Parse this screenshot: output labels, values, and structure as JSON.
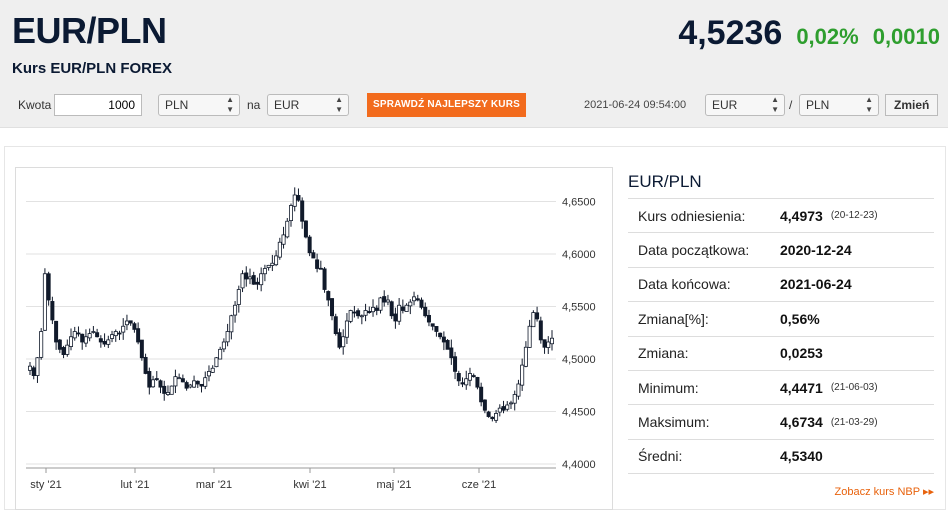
{
  "header": {
    "title": "EUR/PLN",
    "subtitle": "Kurs EUR/PLN FOREX",
    "rate": "4,5236",
    "change_pct": "0,02%",
    "change_abs": "0,0010"
  },
  "toolbar": {
    "amount_label": "Kwota",
    "amount_value": "1000",
    "from_currency": "PLN",
    "to_label": "na",
    "to_currency": "EUR",
    "cta_label": "SPRAWDŹ NAJLEPSZY KURS",
    "timestamp": "2021-06-24 09:54:00",
    "pair_base": "EUR",
    "pair_sep": "/",
    "pair_quote": "PLN",
    "change_button": "Zmień"
  },
  "panel": {
    "title": "EUR/PLN",
    "rows": [
      {
        "label": "Kurs odniesienia:",
        "value": "4,4973",
        "date": "(20-12-23)"
      },
      {
        "label": "Data początkowa:",
        "value": "2020-12-24",
        "date": ""
      },
      {
        "label": "Data końcowa:",
        "value": "2021-06-24",
        "date": ""
      },
      {
        "label": "Zmiana[%]:",
        "value": "0,56%",
        "date": ""
      },
      {
        "label": "Zmiana:",
        "value": "0,0253",
        "date": ""
      },
      {
        "label": "Minimum:",
        "value": "4,4471",
        "date": "(21-06-03)"
      },
      {
        "label": "Maksimum:",
        "value": "4,6734",
        "date": "(21-03-29)"
      },
      {
        "label": "Średni:",
        "value": "4,5340",
        "date": ""
      }
    ],
    "nbp_link": "Zobacz kurs NBP ▸▸"
  },
  "colors": {
    "title": "#0b1a33",
    "positive": "#2e9e2e",
    "cta": "#f26b1d",
    "link": "#e8620c",
    "candle_down": "#111a2b",
    "candle_up": "#ffffff"
  },
  "chart_data": {
    "type": "candlestick",
    "ylim": [
      4.4,
      4.68
    ],
    "yticks": [
      "4,4000",
      "4,4500",
      "4,5000",
      "4,5500",
      "4,6000",
      "4,6500"
    ],
    "xticks": [
      "sty '21",
      "lut '21",
      "mar '21",
      "kwi '21",
      "maj '21",
      "cze '21"
    ],
    "close": [
      4.497,
      4.488,
      4.505,
      4.53,
      4.585,
      4.56,
      4.541,
      4.52,
      4.513,
      4.508,
      4.517,
      4.525,
      4.53,
      4.528,
      4.52,
      4.525,
      4.528,
      4.53,
      4.525,
      4.52,
      4.518,
      4.522,
      4.527,
      4.53,
      4.528,
      4.535,
      4.54,
      4.538,
      4.532,
      4.52,
      4.505,
      4.49,
      4.477,
      4.484,
      4.485,
      4.477,
      4.471,
      4.472,
      4.478,
      4.487,
      4.486,
      4.482,
      4.476,
      4.479,
      4.483,
      4.48,
      4.478,
      4.486,
      4.492,
      4.495,
      4.505,
      4.513,
      4.52,
      4.53,
      4.545,
      4.555,
      4.57,
      4.585,
      4.58,
      4.582,
      4.575,
      4.575,
      4.585,
      4.59,
      4.593,
      4.595,
      4.602,
      4.615,
      4.622,
      4.635,
      4.65,
      4.66,
      4.655,
      4.635,
      4.62,
      4.605,
      4.6,
      4.59,
      4.59,
      4.57,
      4.56,
      4.545,
      4.528,
      4.515,
      4.525,
      4.54,
      4.55,
      4.548,
      4.545,
      4.545,
      4.55,
      4.548,
      4.553,
      4.55,
      4.562,
      4.558,
      4.56,
      4.545,
      4.54,
      4.555,
      4.55,
      4.555,
      4.558,
      4.563,
      4.56,
      4.553,
      4.545,
      4.539,
      4.535,
      4.53,
      4.525,
      4.52,
      4.513,
      4.505,
      4.492,
      4.483,
      4.48,
      4.485,
      4.49,
      4.487,
      4.477,
      4.463,
      4.455,
      4.449,
      4.447,
      4.452,
      4.457,
      4.455,
      4.46,
      4.462,
      4.47,
      4.48,
      4.498,
      4.515,
      4.535,
      4.548,
      4.542,
      4.522,
      4.515,
      4.52,
      4.5236
    ]
  }
}
